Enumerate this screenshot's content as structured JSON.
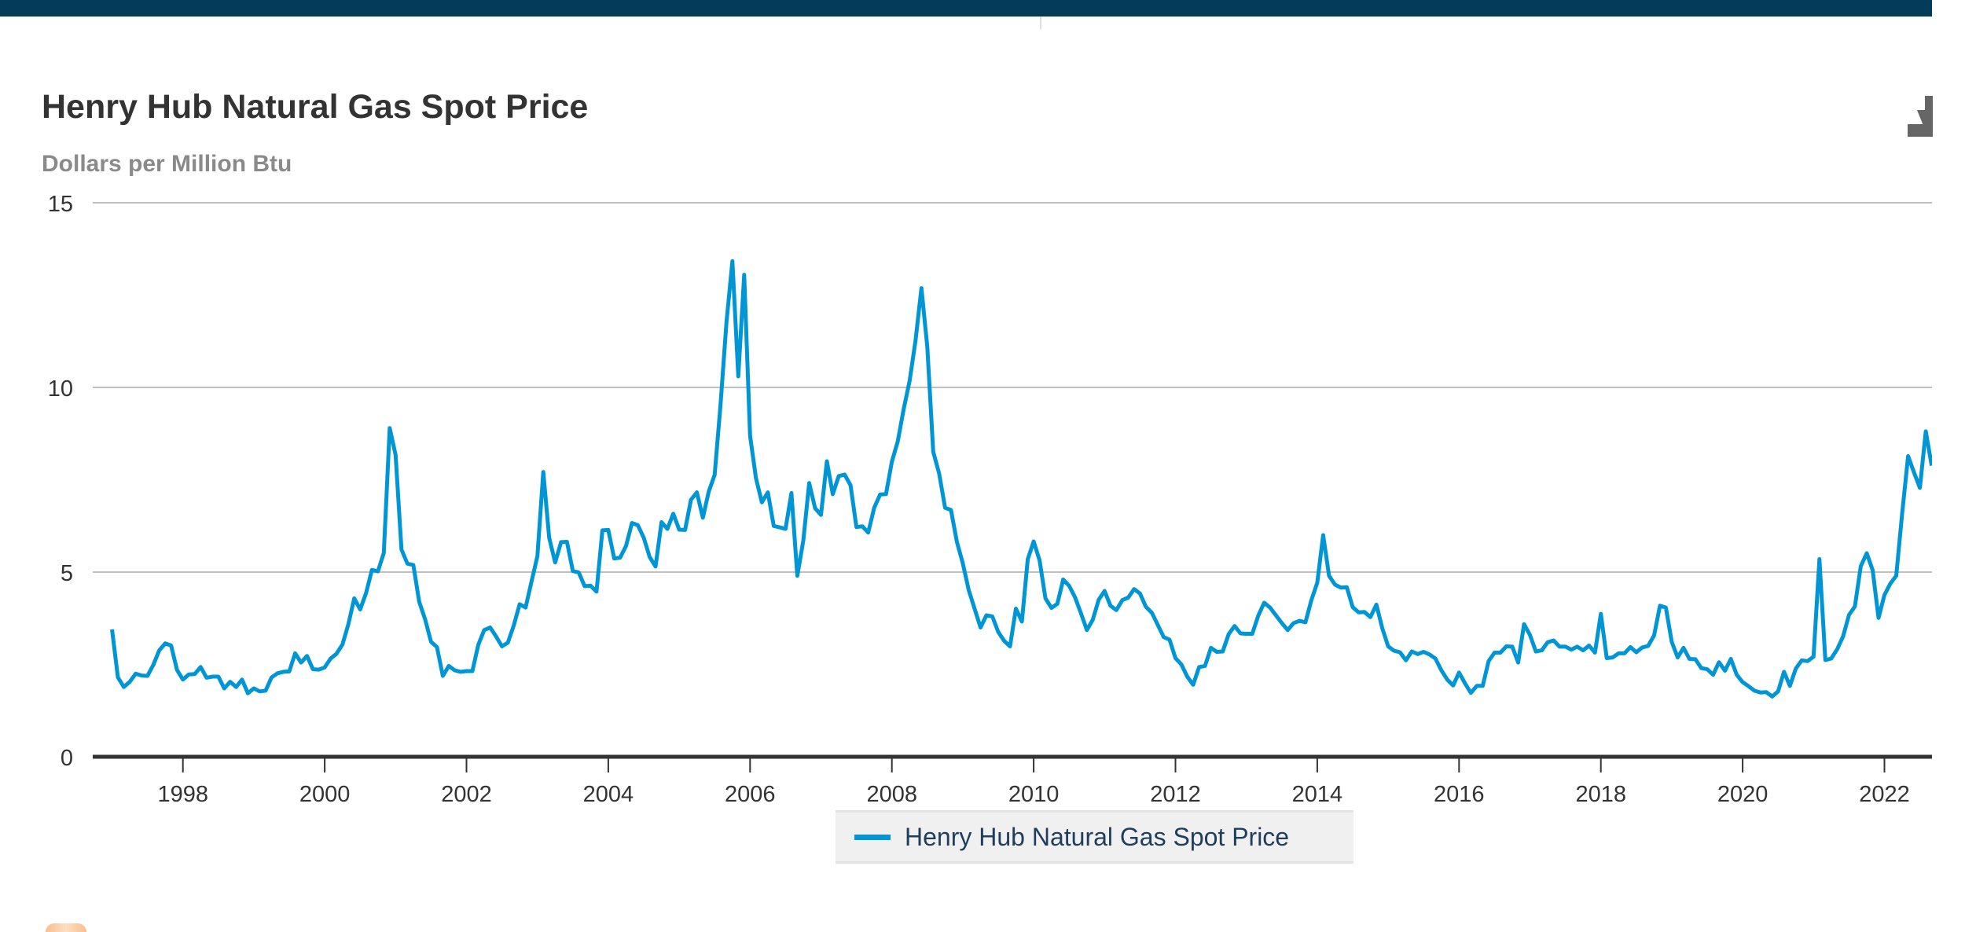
{
  "chart_data": {
    "type": "line",
    "title": "Henry Hub Natural Gas Spot Price",
    "subtitle": "Dollars per Million Btu",
    "xlabel": "",
    "ylabel": "Dollars per Million Btu",
    "ylim": [
      0,
      15
    ],
    "yticks": [
      "0",
      "5",
      "10",
      "15"
    ],
    "xlim": [
      1997.0,
      2022.67
    ],
    "xticks": [
      "1998",
      "2000",
      "2002",
      "2004",
      "2006",
      "2008",
      "2010",
      "2012",
      "2014",
      "2016",
      "2018",
      "2020",
      "2022"
    ],
    "grid": true,
    "legend_position": "bottom-center",
    "series": [
      {
        "name": "Henry Hub Natural Gas Spot Price",
        "color": "#0096d6",
        "start": "1997-01",
        "frequency": "monthly",
        "values": [
          3.45,
          2.15,
          1.89,
          2.03,
          2.25,
          2.2,
          2.19,
          2.49,
          2.88,
          3.07,
          3.01,
          2.35,
          2.09,
          2.23,
          2.24,
          2.43,
          2.14,
          2.17,
          2.17,
          1.85,
          2.03,
          1.89,
          2.09,
          1.72,
          1.85,
          1.77,
          1.79,
          2.15,
          2.26,
          2.3,
          2.31,
          2.8,
          2.55,
          2.73,
          2.37,
          2.36,
          2.42,
          2.66,
          2.79,
          3.04,
          3.59,
          4.29,
          3.99,
          4.43,
          5.06,
          5.02,
          5.52,
          8.9,
          8.17,
          5.61,
          5.23,
          5.19,
          4.19,
          3.72,
          3.11,
          2.97,
          2.19,
          2.46,
          2.34,
          2.3,
          2.32,
          2.32,
          3.03,
          3.43,
          3.5,
          3.26,
          2.99,
          3.09,
          3.55,
          4.13,
          4.04,
          4.74,
          5.43,
          7.71,
          5.93,
          5.26,
          5.81,
          5.82,
          5.03,
          4.99,
          4.62,
          4.63,
          4.47,
          6.13,
          6.14,
          5.37,
          5.39,
          5.71,
          6.33,
          6.27,
          5.93,
          5.41,
          5.15,
          6.35,
          6.17,
          6.58,
          6.15,
          6.14,
          6.96,
          7.16,
          6.47,
          7.18,
          7.63,
          9.53,
          11.75,
          13.42,
          10.3,
          13.05,
          8.69,
          7.54,
          6.89,
          7.16,
          6.25,
          6.21,
          6.17,
          7.14,
          4.9,
          5.85,
          7.41,
          6.73,
          6.55,
          8.0,
          7.11,
          7.6,
          7.64,
          7.35,
          6.22,
          6.24,
          6.07,
          6.74,
          7.1,
          7.11,
          7.99,
          8.54,
          9.41,
          10.18,
          11.27,
          12.69,
          11.09,
          8.26,
          7.67,
          6.74,
          6.68,
          5.82,
          5.24,
          4.52,
          4.01,
          3.5,
          3.83,
          3.8,
          3.38,
          3.14,
          2.99,
          4.01,
          3.66,
          5.35,
          5.83,
          5.32,
          4.29,
          4.03,
          4.14,
          4.8,
          4.63,
          4.32,
          3.89,
          3.43,
          3.71,
          4.25,
          4.49,
          4.09,
          3.97,
          4.24,
          4.31,
          4.54,
          4.42,
          4.06,
          3.9,
          3.57,
          3.24,
          3.17,
          2.67,
          2.5,
          2.17,
          1.95,
          2.43,
          2.46,
          2.95,
          2.84,
          2.85,
          3.32,
          3.54,
          3.34,
          3.33,
          3.33,
          3.81,
          4.17,
          4.04,
          3.83,
          3.62,
          3.43,
          3.62,
          3.68,
          3.64,
          4.24,
          4.71,
          6.0,
          4.9,
          4.66,
          4.58,
          4.59,
          4.05,
          3.91,
          3.92,
          3.78,
          4.12,
          3.48,
          2.99,
          2.87,
          2.83,
          2.61,
          2.85,
          2.78,
          2.84,
          2.77,
          2.66,
          2.34,
          2.09,
          1.93,
          2.28,
          1.99,
          1.73,
          1.92,
          1.92,
          2.59,
          2.82,
          2.82,
          2.99,
          2.98,
          2.55,
          3.59,
          3.3,
          2.85,
          2.88,
          3.1,
          3.15,
          2.98,
          2.98,
          2.9,
          2.98,
          2.88,
          3.01,
          2.82,
          3.87,
          2.67,
          2.69,
          2.8,
          2.8,
          2.97,
          2.83,
          2.96,
          3.0,
          3.28,
          4.09,
          4.04,
          3.11,
          2.69,
          2.95,
          2.65,
          2.64,
          2.4,
          2.37,
          2.22,
          2.56,
          2.33,
          2.65,
          2.22,
          2.02,
          1.91,
          1.79,
          1.74,
          1.75,
          1.63,
          1.77,
          2.3,
          1.92,
          2.39,
          2.61,
          2.59,
          2.71,
          5.35,
          2.62,
          2.66,
          2.91,
          3.26,
          3.84,
          4.07,
          5.16,
          5.51,
          5.05,
          3.76,
          4.38,
          4.69,
          4.9,
          6.6,
          8.14,
          7.7,
          7.28,
          8.81,
          7.88
        ]
      }
    ]
  }
}
